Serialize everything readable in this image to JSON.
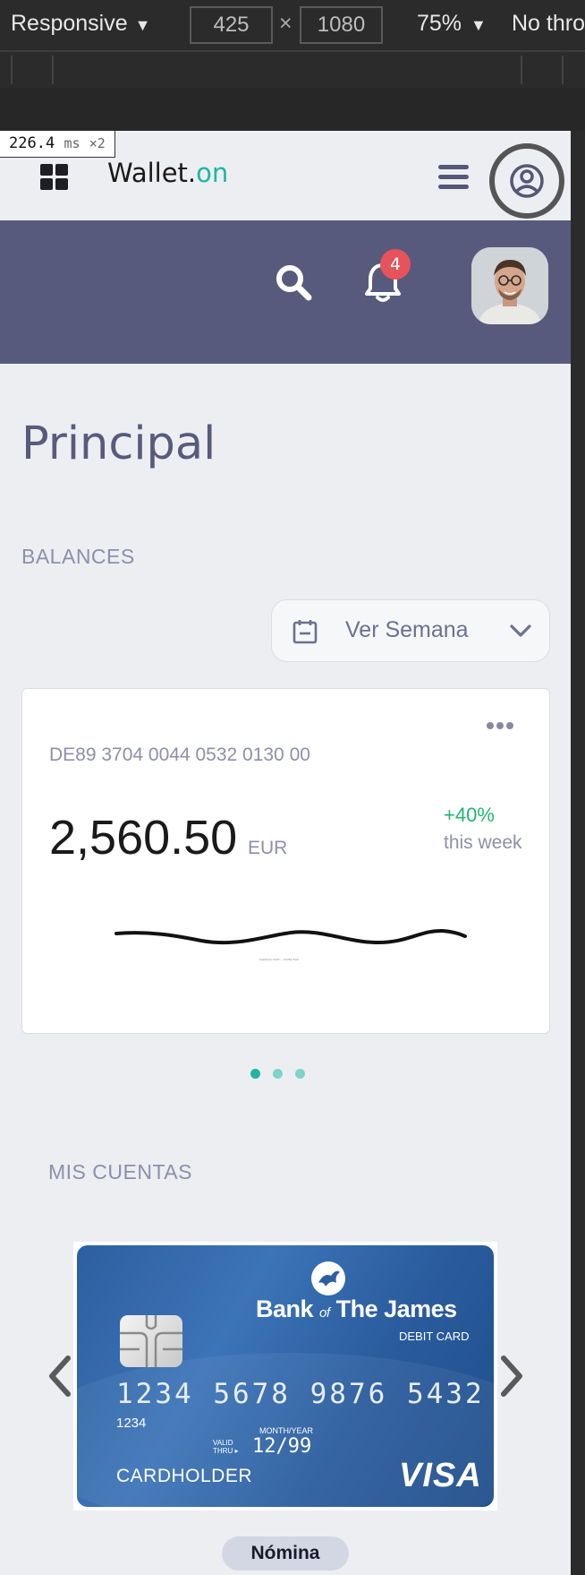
{
  "devtools": {
    "device_preset": "Responsive",
    "width": "425",
    "times": "×",
    "height": "1080",
    "zoom": "75%",
    "throttle": "No thro",
    "frame_time": "226.4",
    "frame_unit": "ms",
    "frame_multiplier": "×2"
  },
  "app": {
    "brand_main": "Wallet.",
    "brand_accent": "on",
    "accent_color": "#1fb5a3",
    "header_color": "#585a7d",
    "notifications_count": "4"
  },
  "page": {
    "title": "Principal"
  },
  "balances": {
    "section_label": "BALANCES",
    "period_select": "Ver Semana",
    "card": {
      "iban": "DE89 3704 0044 0532 0130 00",
      "amount": "2,560.50",
      "currency": "EUR",
      "change": "+40%",
      "change_period": "this week",
      "caption": "sparkline chart — tooltip text"
    },
    "carousel_dots": 3,
    "active_dot": 0
  },
  "accounts": {
    "section_label": "MIS CUENTAS",
    "card": {
      "bank_name_a": "Bank",
      "bank_name_of": "of",
      "bank_name_b": "The James",
      "card_type": "DEBIT CARD",
      "number": "1234 5678 9876 5432",
      "number_small": "1234",
      "valid_thru": "VALID\nTHRU",
      "month_year": "MONTH/YEAR",
      "expiry": "12/99",
      "cardholder": "CARDHOLDER",
      "network": "VISA"
    },
    "account_name": "Nómina"
  },
  "icons": [
    "grid-icon",
    "hamburger-icon",
    "user-circle-icon",
    "search-icon",
    "bell-icon",
    "calendar-icon",
    "chevron-down-icon",
    "more-dots-icon",
    "chevron-left-icon",
    "chevron-right-icon"
  ]
}
